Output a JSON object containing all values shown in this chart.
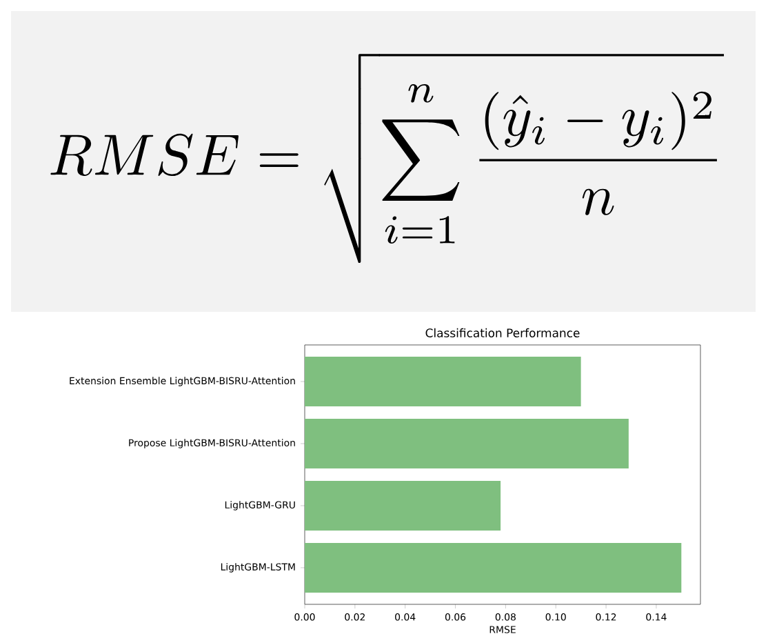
{
  "chart_data": {
    "type": "bar",
    "orientation": "horizontal",
    "title": "Classification Performance",
    "xlabel": "RMSE",
    "categories": [
      "Extension Ensemble LightGBM-BISRU-Attention",
      "Propose LightGBM-BISRU-Attention",
      "LightGBM-GRU",
      "LightGBM-LSTM"
    ],
    "values": [
      0.11,
      0.129,
      0.078,
      0.15
    ],
    "color": "#7fbf7f",
    "xlim": [
      0,
      0.1576
    ],
    "xticks": [
      {
        "value": 0,
        "label": "0.00"
      },
      {
        "value": 0.02,
        "label": "0.02"
      },
      {
        "value": 0.04,
        "label": "0.04"
      },
      {
        "value": 0.06,
        "label": "0.06"
      },
      {
        "value": 0.08,
        "label": "0.08"
      },
      {
        "value": 0.1,
        "label": "0.10"
      },
      {
        "value": 0.12,
        "label": "0.12"
      },
      {
        "value": 0.14,
        "label": "0.14"
      }
    ],
    "annotations": [
      "RMSE = \\sqrt{\\sum_{i=1}^{n} \\frac{(\\hat{y}_i - y_i)^2}{n}}"
    ]
  }
}
